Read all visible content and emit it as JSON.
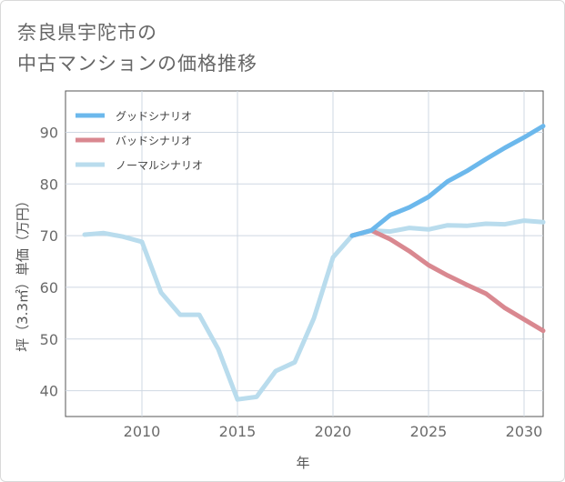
{
  "title_lines": [
    "奈良県宇陀市の",
    "中古マンションの価格推移"
  ],
  "chart_data": {
    "type": "line",
    "xlabel": "年",
    "ylabel": "坪（3.3㎡）単価（万円）",
    "xlim": [
      2006,
      2031
    ],
    "ylim": [
      35,
      98
    ],
    "xticks": [
      2010,
      2015,
      2020,
      2025,
      2030
    ],
    "yticks": [
      40,
      50,
      60,
      70,
      80,
      90
    ],
    "grid": true,
    "legend_position": "top-left",
    "series": [
      {
        "name": "グッドシナリオ",
        "color": "#6cb8ec",
        "x": [
          2021,
          2022,
          2023,
          2024,
          2025,
          2026,
          2027,
          2028,
          2029,
          2030,
          2031
        ],
        "values": [
          70.0,
          71.0,
          74.0,
          75.5,
          77.5,
          80.5,
          82.5,
          84.8,
          87.0,
          89.0,
          91.2
        ]
      },
      {
        "name": "バッドシナリオ",
        "color": "#d98890",
        "x": [
          2021,
          2022,
          2023,
          2024,
          2025,
          2026,
          2027,
          2028,
          2029,
          2030,
          2031
        ],
        "values": [
          70.0,
          71.0,
          69.3,
          67.0,
          64.3,
          62.3,
          60.5,
          58.8,
          56.0,
          53.8,
          51.6
        ]
      },
      {
        "name": "ノーマルシナリオ",
        "color": "#b9dced",
        "x": [
          2007,
          2008,
          2009,
          2010,
          2011,
          2012,
          2013,
          2014,
          2015,
          2016,
          2017,
          2018,
          2019,
          2020,
          2021,
          2022,
          2023,
          2024,
          2025,
          2026,
          2027,
          2028,
          2029,
          2030,
          2031
        ],
        "values": [
          70.2,
          70.5,
          69.8,
          68.8,
          59.0,
          54.7,
          54.7,
          48.0,
          38.3,
          38.8,
          43.8,
          45.5,
          54.0,
          65.8,
          70.0,
          71.0,
          70.8,
          71.5,
          71.2,
          72.0,
          71.9,
          72.3,
          72.2,
          72.9,
          72.6
        ]
      }
    ]
  }
}
